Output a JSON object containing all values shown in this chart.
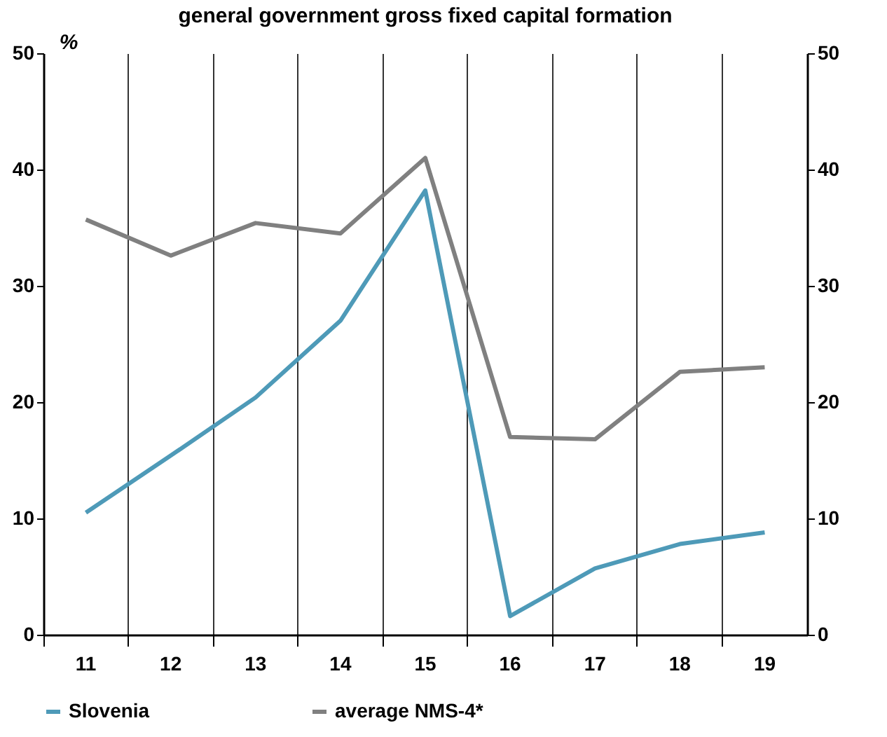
{
  "chart_data": {
    "type": "line",
    "title": "general government gross fixed capital formation",
    "ylabel": "%",
    "categories": [
      "11",
      "12",
      "13",
      "14",
      "15",
      "16",
      "17",
      "18",
      "19"
    ],
    "series": [
      {
        "name": "Slovenia",
        "color": "#4e9ab8",
        "values": [
          10.5,
          15.4,
          20.4,
          27.0,
          38.2,
          1.6,
          5.7,
          7.8,
          8.8
        ]
      },
      {
        "name": "average NMS-4*",
        "color": "#808080",
        "values": [
          35.7,
          32.6,
          35.4,
          34.5,
          41.0,
          17.0,
          16.8,
          22.6,
          23.0
        ]
      }
    ],
    "ylim": [
      0,
      50
    ],
    "yticks": [
      0,
      10,
      20,
      30,
      40,
      50
    ],
    "y2lim": [
      0,
      50
    ],
    "y2ticks": [
      0,
      10,
      20,
      30,
      40,
      50
    ],
    "grid": "x",
    "legend": "bottom",
    "marker": "none",
    "line_style": "solid"
  }
}
